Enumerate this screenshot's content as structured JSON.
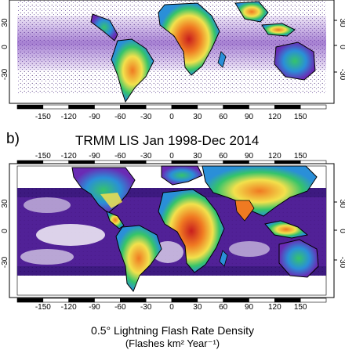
{
  "panel_b": {
    "letter": "b)",
    "title": "TRMM LIS Jan 1998-Dec 2014"
  },
  "lon_ticks": [
    "-150",
    "-120",
    "-90",
    "-60",
    "-30",
    "0",
    "30",
    "60",
    "90",
    "120",
    "150"
  ],
  "lat_ticks": [
    "30",
    "0",
    "-30"
  ],
  "colorbar": {
    "title": "0.5° Lightning Flash Rate Density",
    "units": "(Flashes km² Year⁻¹)"
  },
  "colors": {
    "ocean_background": "#ffffff",
    "low": "#2b0a5e",
    "low_mid": "#6a2bb4",
    "mid": "#2a8fd8",
    "mid_high": "#35c46a",
    "high": "#f2e14c",
    "very_high": "#f07a22",
    "max": "#c81e1e",
    "coastline": "#000000"
  }
}
